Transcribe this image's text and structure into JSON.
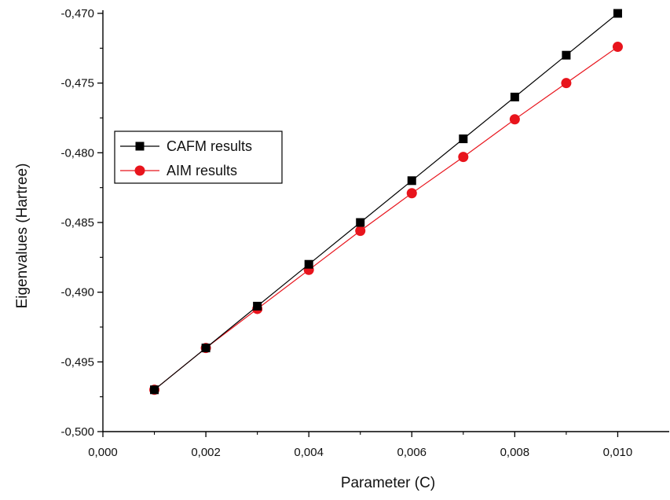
{
  "chart_data": {
    "type": "line",
    "title": "",
    "xlabel": "Parameter (C)",
    "ylabel": "Eigenvalues (Hartree)",
    "xlim": [
      0.0,
      0.011
    ],
    "ylim": [
      -0.5,
      -0.47
    ],
    "x_ticks": [
      {
        "value": 0.0,
        "label": "0,000"
      },
      {
        "value": 0.002,
        "label": "0,002"
      },
      {
        "value": 0.004,
        "label": "0,004"
      },
      {
        "value": 0.006,
        "label": "0,006"
      },
      {
        "value": 0.008,
        "label": "0,008"
      },
      {
        "value": 0.01,
        "label": "0,010"
      }
    ],
    "y_ticks": [
      {
        "value": -0.5,
        "label": "-0,500"
      },
      {
        "value": -0.495,
        "label": "-0,495"
      },
      {
        "value": -0.49,
        "label": "-0,490"
      },
      {
        "value": -0.485,
        "label": "-0,485"
      },
      {
        "value": -0.48,
        "label": "-0,480"
      },
      {
        "value": -0.475,
        "label": "-0,475"
      },
      {
        "value": -0.47,
        "label": "-0,470"
      }
    ],
    "grid": false,
    "legend": {
      "position": "left-middle"
    },
    "x": [
      0.001,
      0.002,
      0.003,
      0.004,
      0.005,
      0.006,
      0.007,
      0.008,
      0.009,
      0.01
    ],
    "series": [
      {
        "name": "CAFM results",
        "marker": "square",
        "color": "#000000",
        "values": [
          -0.497,
          -0.494,
          -0.491,
          -0.488,
          -0.485,
          -0.482,
          -0.479,
          -0.476,
          -0.473,
          -0.47
        ]
      },
      {
        "name": "AIM results",
        "marker": "circle",
        "color": "#e8141c",
        "values": [
          -0.497,
          -0.494,
          -0.4912,
          -0.4884,
          -0.4856,
          -0.4829,
          -0.4803,
          -0.4776,
          -0.475,
          -0.4724
        ]
      }
    ]
  }
}
